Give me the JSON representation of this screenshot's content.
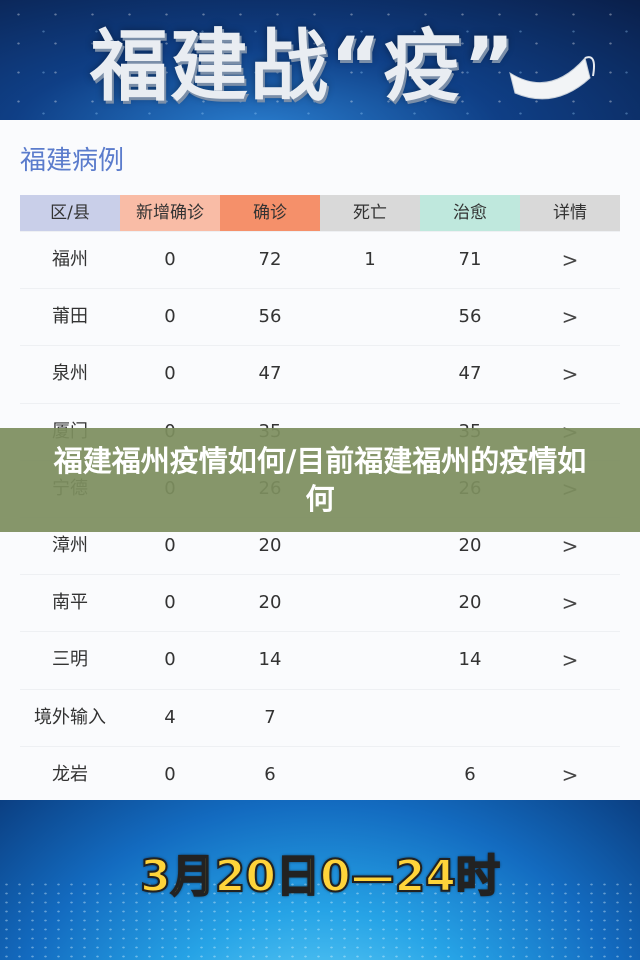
{
  "top_banner": {
    "title": "福建战“疫”",
    "icon": "face-mask-icon"
  },
  "section": {
    "title": "福建病例"
  },
  "table": {
    "headers": [
      {
        "label": "区/县",
        "color": "#c9cfe9"
      },
      {
        "label": "新增确诊",
        "color": "#f9bca6"
      },
      {
        "label": "确诊",
        "color": "#f5906a"
      },
      {
        "label": "死亡",
        "color": "#d9d9d9"
      },
      {
        "label": "治愈",
        "color": "#bfe8dd"
      },
      {
        "label": "详情",
        "color": "#d9d9d9"
      }
    ],
    "rows": [
      [
        "福州",
        "0",
        "72",
        "1",
        "71",
        ">"
      ],
      [
        "莆田",
        "0",
        "56",
        "",
        "56",
        ">"
      ],
      [
        "泉州",
        "0",
        "47",
        "",
        "47",
        ">"
      ],
      [
        "厦门",
        "0",
        "35",
        "",
        "35",
        ">"
      ],
      [
        "宁德",
        "0",
        "26",
        "",
        "26",
        ">"
      ],
      [
        "漳州",
        "0",
        "20",
        "",
        "20",
        ">"
      ],
      [
        "南平",
        "0",
        "20",
        "",
        "20",
        ">"
      ],
      [
        "三明",
        "0",
        "14",
        "",
        "14",
        ">"
      ],
      [
        "境外输入",
        "4",
        "7",
        "",
        "",
        ""
      ],
      [
        "龙岩",
        "0",
        "6",
        "",
        "6",
        ">"
      ]
    ]
  },
  "overlay": {
    "text": "福建福州疫情如何/目前福建福州的疫情如何"
  },
  "bottom_banner": {
    "date": "3月20日0—24时"
  }
}
